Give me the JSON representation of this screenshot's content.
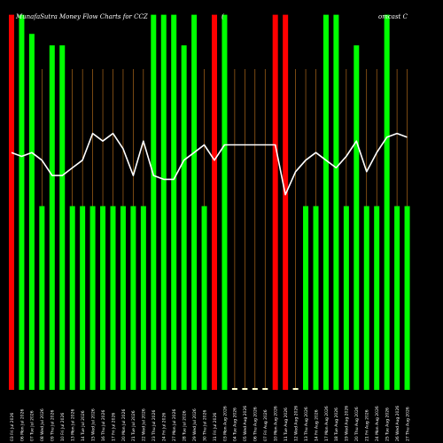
{
  "title": {
    "left": "MunafaSutra  Money Flow  Charts for CCZ",
    "middle": "(",
    "right": "omcast C"
  },
  "chart_data": {
    "type": "bar",
    "title": "MunafaSutra  Money Flow  Charts for CCZ",
    "categories": [
      "03 Fri Jul 2026",
      "06 Mon Jul 2026",
      "07 Tue Jul 2026",
      "08 Wed Jul 2026",
      "09 Thu Jul 2026",
      "10 Fri Jul 2026",
      "13 Mon Jul 2026",
      "14 Tue Jul 2026",
      "15 Wed Jul 2026",
      "16 Thu Jul 2026",
      "17 Fri Jul 2026",
      "20 Mon Jul 2026",
      "21 Tue Jul 2026",
      "22 Wed Jul 2026",
      "23 Thu Jul 2026",
      "24 Fri Jul 2026",
      "27 Mon Jul 2026",
      "28 Tue Jul 2026",
      "29 Wed Jul 2026",
      "30 Thu Jul 2026",
      "31 Fri Jul 2026",
      "03 Mon Aug 2026",
      "04 Tue Aug 2026",
      "05 Wed Aug 2026",
      "06 Thu Aug 2026",
      "07 Fri Aug 2026",
      "10 Mon Aug 2026",
      "11 Tue Aug 2026",
      "12 Wed Aug 2026",
      "13 Thu Aug 2026",
      "14 Fri Aug 2026",
      "17 Mon Aug 2026",
      "18 Tue Aug 2026",
      "19 Wed Aug 2026",
      "20 Thu Aug 2026",
      "21 Fri Aug 2026",
      "24 Mon Aug 2026",
      "25 Tue Aug 2026",
      "26 Wed Aug 2026",
      "27 Thu Aug 2026"
    ],
    "bar_height_fraction": [
      0.98,
      0.98,
      0.93,
      0.48,
      0.9,
      0.9,
      0.48,
      0.48,
      0.48,
      0.48,
      0.48,
      0.48,
      0.48,
      0.48,
      0.98,
      0.98,
      0.98,
      0.9,
      0.98,
      0.48,
      0.98,
      0.98,
      0.0,
      0.0,
      0.0,
      0.0,
      0.98,
      0.98,
      0.0,
      0.48,
      0.48,
      0.98,
      0.98,
      0.48,
      0.9,
      0.48,
      0.48,
      0.98,
      0.48,
      0.48
    ],
    "bar_colors": [
      "#ff0000",
      "#00ff00",
      "#00ff00",
      "#00ff00",
      "#00ff00",
      "#00ff00",
      "#00ff00",
      "#00ff00",
      "#00ff00",
      "#00ff00",
      "#00ff00",
      "#00ff00",
      "#00ff00",
      "#00ff00",
      "#00ff00",
      "#00ff00",
      "#00ff00",
      "#00ff00",
      "#00ff00",
      "#00ff00",
      "#ff0000",
      "#00ff00",
      "#ffffcc",
      "#ffffcc",
      "#ffffcc",
      "#ffffcc",
      "#ff0000",
      "#ff0000",
      "#ffffcc",
      "#00ff00",
      "#00ff00",
      "#00ff00",
      "#00ff00",
      "#00ff00",
      "#00ff00",
      "#00ff00",
      "#00ff00",
      "#00ff00",
      "#00ff00",
      "#00ff00"
    ],
    "line_level_fraction": [
      0.62,
      0.61,
      0.62,
      0.6,
      0.56,
      0.56,
      0.58,
      0.6,
      0.67,
      0.65,
      0.67,
      0.63,
      0.56,
      0.65,
      0.56,
      0.55,
      0.55,
      0.6,
      0.62,
      0.64,
      0.6,
      0.64,
      0.64,
      0.64,
      0.64,
      0.64,
      0.64,
      0.51,
      0.57,
      0.6,
      0.62,
      0.6,
      0.58,
      0.61,
      0.65,
      0.57,
      0.62,
      0.66,
      0.67,
      0.66
    ],
    "colors": {
      "background": "#000000",
      "up": "#00ff00",
      "down": "#ff0000",
      "neutral": "#ffffcc",
      "line": "#ffffff",
      "grid": "#c8781e"
    },
    "grid": "vertical"
  }
}
